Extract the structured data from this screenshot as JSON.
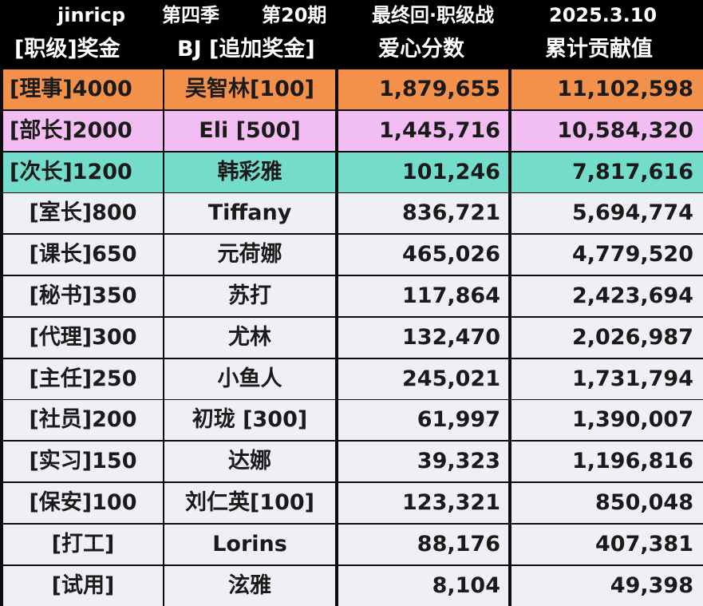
{
  "title_bar": {
    "channel": "jinricp",
    "season": "第四季",
    "episode": "第20期",
    "event": "最终回·职级战",
    "date": "2025.3.10"
  },
  "headers": {
    "rank_prize": "[职级]奖金",
    "bj_bonus": "BJ [追加奖金]",
    "love_score": "爱心分数",
    "total_contribution": "累计贡献值"
  },
  "colors": {
    "gold": "#f3904a",
    "silver": "#f2bdf2",
    "bronze": "#74dccb",
    "normal": "#eef0f6"
  },
  "rows": [
    {
      "rank": "[理事]4000",
      "bj": "吴智林[100]",
      "score": "1,879,655",
      "total": "11,102,598",
      "tier": "gold"
    },
    {
      "rank": "[部长]2000",
      "bj": "Eli [500]",
      "score": "1,445,716",
      "total": "10,584,320",
      "tier": "silver"
    },
    {
      "rank": "[次长]1200",
      "bj": "韩彩雅",
      "score": "101,246",
      "total": "7,817,616",
      "tier": "bronze"
    },
    {
      "rank": "[室长]800",
      "bj": "Tiffany",
      "score": "836,721",
      "total": "5,694,774",
      "tier": "normal"
    },
    {
      "rank": "[课长]650",
      "bj": "元荷娜",
      "score": "465,026",
      "total": "4,779,520",
      "tier": "normal"
    },
    {
      "rank": "[秘书]350",
      "bj": "苏打",
      "score": "117,864",
      "total": "2,423,694",
      "tier": "normal"
    },
    {
      "rank": "[代理]300",
      "bj": "尤林",
      "score": "132,470",
      "total": "2,026,987",
      "tier": "normal"
    },
    {
      "rank": "[主任]250",
      "bj": "小鱼人",
      "score": "245,021",
      "total": "1,731,794",
      "tier": "normal"
    },
    {
      "rank": "[社员]200",
      "bj": "初珑 [300]",
      "score": "61,997",
      "total": "1,390,007",
      "tier": "normal"
    },
    {
      "rank": "[实习]150",
      "bj": "达娜",
      "score": "39,323",
      "total": "1,196,816",
      "tier": "normal"
    },
    {
      "rank": "[保安]100",
      "bj": "刘仁英[100]",
      "score": "123,321",
      "total": "850,048",
      "tier": "normal"
    },
    {
      "rank": "[打工]",
      "bj": "Lorins",
      "score": "88,176",
      "total": "407,381",
      "tier": "normal"
    },
    {
      "rank": "[试用]",
      "bj": "泫雅",
      "score": "8,104",
      "total": "49,398",
      "tier": "normal"
    }
  ]
}
